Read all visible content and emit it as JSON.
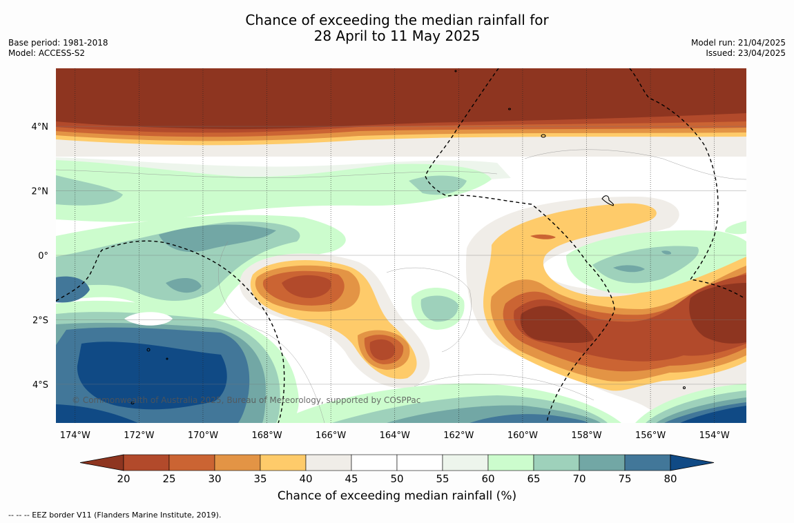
{
  "title": {
    "line1": "Chance of exceeding the median rainfall for",
    "line2": "28 April to 11 May 2025"
  },
  "meta_left": {
    "base_period": "Base period: 1981-2018",
    "model": "Model: ACCESS-S2"
  },
  "meta_right": {
    "model_run": "Model run: 21/04/2025",
    "issued": "Issued: 23/04/2025"
  },
  "map": {
    "copyright": "© Commonwealth of Australia 2025, Bureau of Meteorology, supported by COSPPac",
    "lon_ticks": [
      "174°W",
      "172°W",
      "170°W",
      "168°W",
      "166°W",
      "164°W",
      "162°W",
      "160°W",
      "158°W",
      "156°W",
      "154°W"
    ],
    "lat_ticks": [
      "4°N",
      "2°N",
      "0°",
      "2°S",
      "4°S"
    ],
    "extent": {
      "lon_min": -174.6,
      "lon_max": -153.0,
      "lat_min": -5.2,
      "lat_max": 5.8
    }
  },
  "colorbar": {
    "title": "Chance of exceeding median rainfall (%)",
    "ticks": [
      "20",
      "25",
      "30",
      "35",
      "40",
      "45",
      "50",
      "55",
      "60",
      "65",
      "70",
      "75",
      "80"
    ],
    "colors": {
      "below_20": "#8e3520",
      "20-25": "#b24a2b",
      "25-30": "#cb6433",
      "30-35": "#e39445",
      "35-40": "#fecb6a",
      "40-45": "#f0ede8",
      "45-50": "#ffffff",
      "50-55": "#ffffff",
      "55-60": "#edf5ec",
      "60-65": "#ccfccd",
      "65-70": "#9ed1bb",
      "70-75": "#72a7a5",
      "75-80": "#427799",
      "above_80": "#104a85"
    }
  },
  "footnote": "--  --  -- EEZ border V11 (Flanders Marine Institute, 2019)."
}
